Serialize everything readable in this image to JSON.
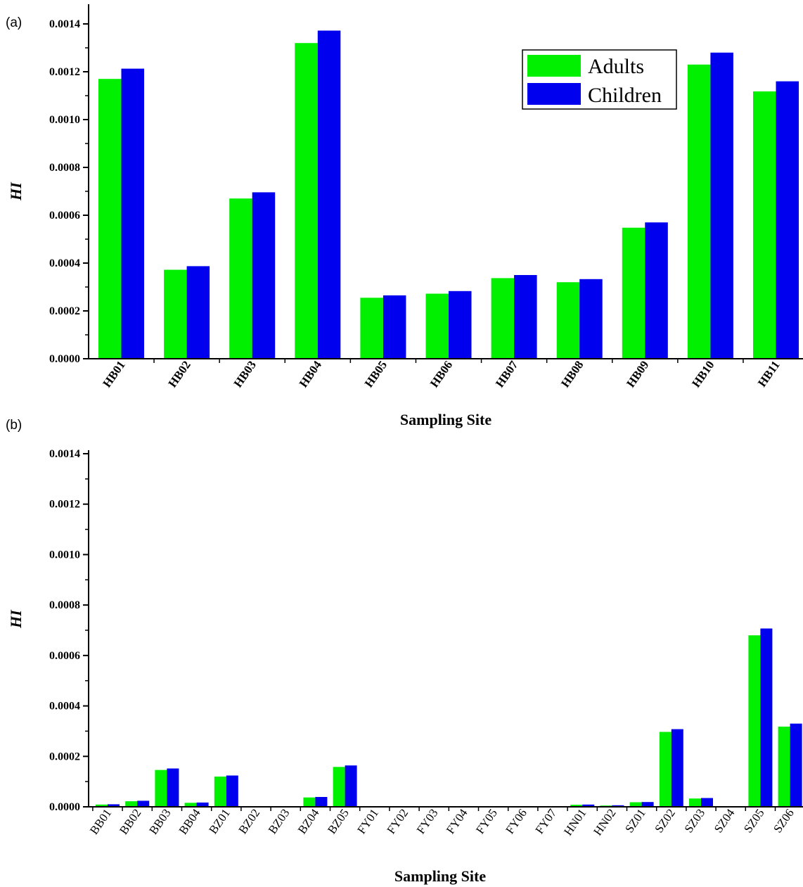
{
  "chart_data": [
    {
      "panel": "(a)",
      "type": "bar",
      "xlabel": "Sampling Site",
      "ylabel": "HI",
      "ylim": [
        0,
        0.0014
      ],
      "yticks": [
        "0.0000",
        "0.0002",
        "0.0004",
        "0.0006",
        "0.0008",
        "0.0010",
        "0.0012",
        "0.0014"
      ],
      "legend_position": "top-right",
      "categories": [
        "HB01",
        "HB02",
        "HB03",
        "HB04",
        "HB05",
        "HB06",
        "HB07",
        "HB08",
        "HB09",
        "HB10",
        "HB11"
      ],
      "series": [
        {
          "name": "Adults",
          "color": "#00f000",
          "values": [
            0.00117,
            0.000372,
            0.00067,
            0.00132,
            0.000255,
            0.000272,
            0.000337,
            0.00032,
            0.000548,
            0.00123,
            0.001118
          ]
        },
        {
          "name": "Children",
          "color": "#0000ee",
          "values": [
            0.001213,
            0.000387,
            0.000696,
            0.001372,
            0.000265,
            0.000283,
            0.00035,
            0.000333,
            0.00057,
            0.00128,
            0.00116
          ]
        }
      ]
    },
    {
      "panel": "(b)",
      "type": "bar",
      "xlabel": "Sampling Site",
      "ylabel": "HI",
      "ylim": [
        0,
        0.0014
      ],
      "yticks": [
        "0.0000",
        "0.0002",
        "0.0004",
        "0.0006",
        "0.0008",
        "0.0010",
        "0.0012",
        "0.0014"
      ],
      "categories": [
        "BB01",
        "BB02",
        "BB03",
        "BB04",
        "BZ01",
        "BZ02",
        "BZ03",
        "BZ04",
        "BZ05",
        "FY01",
        "FY02",
        "FY03",
        "FY04",
        "FY05",
        "FY06",
        "FY07",
        "HN01",
        "HN02",
        "SZ01",
        "SZ02",
        "SZ03",
        "SZ04",
        "SZ05",
        "SZ06"
      ],
      "series": [
        {
          "name": "Adults",
          "color": "#00f000",
          "values": [
            9e-06,
            2.2e-05,
            0.000146,
            1.6e-05,
            0.00012,
            0,
            0,
            3.7e-05,
            0.000158,
            0,
            0,
            0,
            0,
            0,
            0,
            0,
            8e-06,
            5e-06,
            1.8e-05,
            0.000297,
            3.3e-05,
            0,
            0.00068,
            0.000318
          ]
        },
        {
          "name": "Children",
          "color": "#0000ee",
          "values": [
            1e-05,
            2.4e-05,
            0.000152,
            1.7e-05,
            0.000124,
            0,
            0,
            3.9e-05,
            0.000164,
            0,
            0,
            0,
            0,
            0,
            0,
            0,
            9e-06,
            6e-06,
            1.9e-05,
            0.000308,
            3.5e-05,
            0,
            0.000707,
            0.00033
          ]
        }
      ]
    }
  ]
}
